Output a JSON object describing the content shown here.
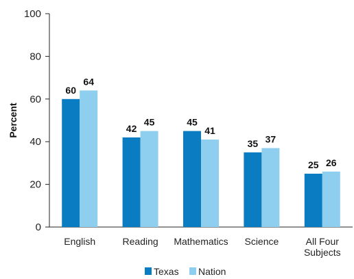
{
  "chart_data": {
    "type": "bar",
    "ylabel": "Percent",
    "ylim": [
      0,
      100
    ],
    "yticks": [
      0,
      20,
      40,
      60,
      80,
      100
    ],
    "categories": [
      [
        "English"
      ],
      [
        "Reading"
      ],
      [
        "Mathematics"
      ],
      [
        "Science"
      ],
      [
        "All Four",
        "Subjects"
      ]
    ],
    "series": [
      {
        "name": "Texas",
        "color": "#0A7CC1",
        "values": [
          60,
          42,
          45,
          35,
          25
        ]
      },
      {
        "name": "Nation",
        "color": "#8ECFEF",
        "values": [
          64,
          45,
          41,
          37,
          26
        ]
      }
    ],
    "legend_position": "bottom",
    "grid": false
  }
}
